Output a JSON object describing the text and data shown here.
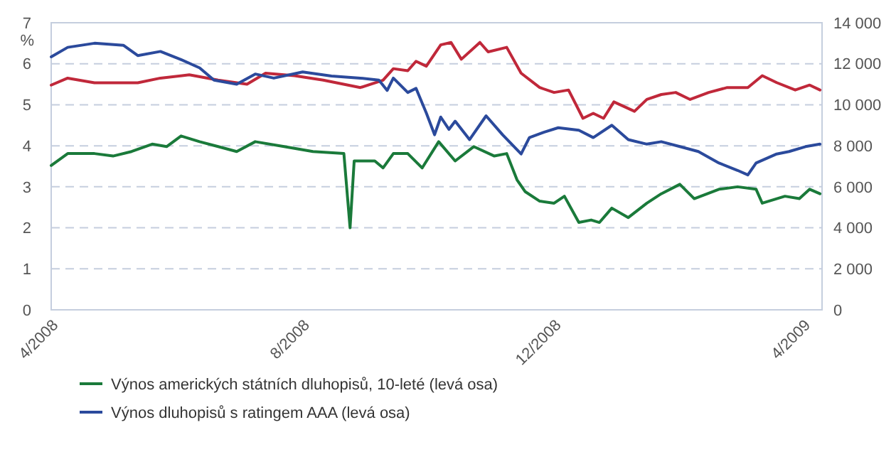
{
  "chart_data": {
    "type": "line",
    "ylabel": "%",
    "xlim": [
      "2008-04-01",
      "2009-04-10"
    ],
    "xticks": [
      {
        "value": "2008-04-01",
        "label": "4/2008"
      },
      {
        "value": "2008-08-01",
        "label": "8/2008"
      },
      {
        "value": "2008-12-01",
        "label": "12/2008"
      },
      {
        "value": "2009-04-01",
        "label": "4/2009"
      }
    ],
    "ylim": [
      0,
      7
    ],
    "yticks": [
      0,
      1,
      2,
      3,
      4,
      5,
      6,
      7
    ],
    "y2lim": [
      0,
      14000
    ],
    "y2ticks": [
      {
        "value": 0,
        "label": "0"
      },
      {
        "value": 2000,
        "label": "2 000"
      },
      {
        "value": 4000,
        "label": "4 000"
      },
      {
        "value": 6000,
        "label": "6 000"
      },
      {
        "value": 8000,
        "label": "8 000"
      },
      {
        "value": 10000,
        "label": "10 000"
      },
      {
        "value": 12000,
        "label": "12 000"
      },
      {
        "value": 14000,
        "label": "14 000"
      }
    ],
    "grid": "y",
    "legend": "bottom",
    "line_style": "solid",
    "marker": "none",
    "series": [
      {
        "name": "Výnos amerických státních dluhopisů, 10-leté (levá osa)",
        "color": "#1a7a3a",
        "x": [
          "2008-04-01",
          "2008-04-09",
          "2008-04-22",
          "2008-05-01",
          "2008-05-10",
          "2008-05-20",
          "2008-05-27",
          "2008-06-03",
          "2008-06-12",
          "2008-06-21",
          "2008-06-30",
          "2008-07-09",
          "2008-07-23",
          "2008-08-06",
          "2008-08-21",
          "2008-08-24",
          "2008-08-26",
          "2008-09-05",
          "2008-09-09",
          "2008-09-14",
          "2008-09-21",
          "2008-09-28",
          "2008-10-06",
          "2008-10-14",
          "2008-10-23",
          "2008-11-02",
          "2008-11-08",
          "2008-11-13",
          "2008-11-17",
          "2008-11-24",
          "2008-12-01",
          "2008-12-06",
          "2008-12-13",
          "2008-12-19",
          "2008-12-23",
          "2008-12-29",
          "2009-01-06",
          "2009-01-15",
          "2009-01-22",
          "2009-01-31",
          "2009-02-07",
          "2009-02-19",
          "2009-02-28",
          "2009-03-09",
          "2009-03-12",
          "2009-03-23",
          "2009-03-30",
          "2009-04-04",
          "2009-04-09"
        ],
        "values": [
          3.52,
          3.81,
          3.81,
          3.75,
          3.86,
          4.04,
          3.98,
          4.24,
          4.1,
          3.98,
          3.86,
          4.1,
          3.98,
          3.86,
          3.81,
          2.0,
          3.63,
          3.63,
          3.46,
          3.81,
          3.81,
          3.46,
          4.1,
          3.63,
          3.98,
          3.75,
          3.81,
          3.17,
          2.88,
          2.65,
          2.6,
          2.77,
          2.13,
          2.19,
          2.13,
          2.48,
          2.25,
          2.6,
          2.83,
          3.06,
          2.71,
          2.94,
          3.0,
          2.94,
          2.6,
          2.77,
          2.71,
          2.94,
          2.83
        ]
      },
      {
        "color": "#c0283a",
        "axis": "y2",
        "x": [
          "2008-04-01",
          "2008-04-09",
          "2008-04-22",
          "2008-05-13",
          "2008-05-24",
          "2008-06-07",
          "2008-06-21",
          "2008-07-05",
          "2008-07-14",
          "2008-07-28",
          "2008-08-11",
          "2008-08-29",
          "2008-09-09",
          "2008-09-14",
          "2008-09-21",
          "2008-09-25",
          "2008-09-30",
          "2008-10-07",
          "2008-10-12",
          "2008-10-17",
          "2008-10-26",
          "2008-10-30",
          "2008-11-08",
          "2008-11-15",
          "2008-11-24",
          "2008-12-01",
          "2008-12-08",
          "2008-12-15",
          "2008-12-20",
          "2008-12-25",
          "2008-12-30",
          "2009-01-09",
          "2009-01-15",
          "2009-01-22",
          "2009-01-29",
          "2009-02-05",
          "2009-02-14",
          "2009-02-23",
          "2009-03-05",
          "2009-03-12",
          "2009-03-19",
          "2009-03-28",
          "2009-04-04",
          "2009-04-09"
        ],
        "values": [
          10960,
          11300,
          11070,
          11070,
          11300,
          11460,
          11200,
          11000,
          11540,
          11420,
          11200,
          10840,
          11200,
          11760,
          11660,
          12120,
          11880,
          12920,
          13040,
          12220,
          13040,
          12580,
          12800,
          11540,
          10840,
          10600,
          10720,
          9340,
          9580,
          9340,
          10140,
          9680,
          10260,
          10500,
          10600,
          10260,
          10600,
          10840,
          10840,
          11420,
          11080,
          10720,
          10960,
          10720
        ]
      },
      {
        "name": "Výnos dluhopisů s ratingem AAA (levá osa)",
        "color": "#2b4a9c",
        "x": [
          "2008-04-01",
          "2008-04-09",
          "2008-04-22",
          "2008-05-06",
          "2008-05-13",
          "2008-05-24",
          "2008-06-03",
          "2008-06-12",
          "2008-06-19",
          "2008-06-30",
          "2008-07-09",
          "2008-07-18",
          "2008-08-01",
          "2008-08-15",
          "2008-08-29",
          "2008-09-07",
          "2008-09-11",
          "2008-09-14",
          "2008-09-21",
          "2008-09-25",
          "2008-09-30",
          "2008-10-04",
          "2008-10-07",
          "2008-10-11",
          "2008-10-14",
          "2008-10-21",
          "2008-10-29",
          "2008-11-06",
          "2008-11-15",
          "2008-11-19",
          "2008-11-26",
          "2008-12-03",
          "2008-12-13",
          "2008-12-20",
          "2008-12-29",
          "2009-01-06",
          "2009-01-15",
          "2009-01-22",
          "2009-01-31",
          "2009-02-09",
          "2009-02-19",
          "2009-02-28",
          "2009-03-05",
          "2009-03-09",
          "2009-03-19",
          "2009-03-25",
          "2009-04-02",
          "2009-04-09"
        ],
        "values": [
          6.17,
          6.4,
          6.5,
          6.45,
          6.2,
          6.3,
          6.1,
          5.9,
          5.6,
          5.5,
          5.75,
          5.65,
          5.8,
          5.7,
          5.65,
          5.6,
          5.35,
          5.65,
          5.3,
          5.4,
          4.8,
          4.27,
          4.7,
          4.4,
          4.6,
          4.15,
          4.73,
          4.27,
          3.8,
          4.2,
          4.33,
          4.44,
          4.38,
          4.2,
          4.5,
          4.15,
          4.04,
          4.1,
          3.98,
          3.86,
          3.58,
          3.4,
          3.29,
          3.58,
          3.8,
          3.86,
          3.98,
          4.04
        ]
      }
    ]
  }
}
